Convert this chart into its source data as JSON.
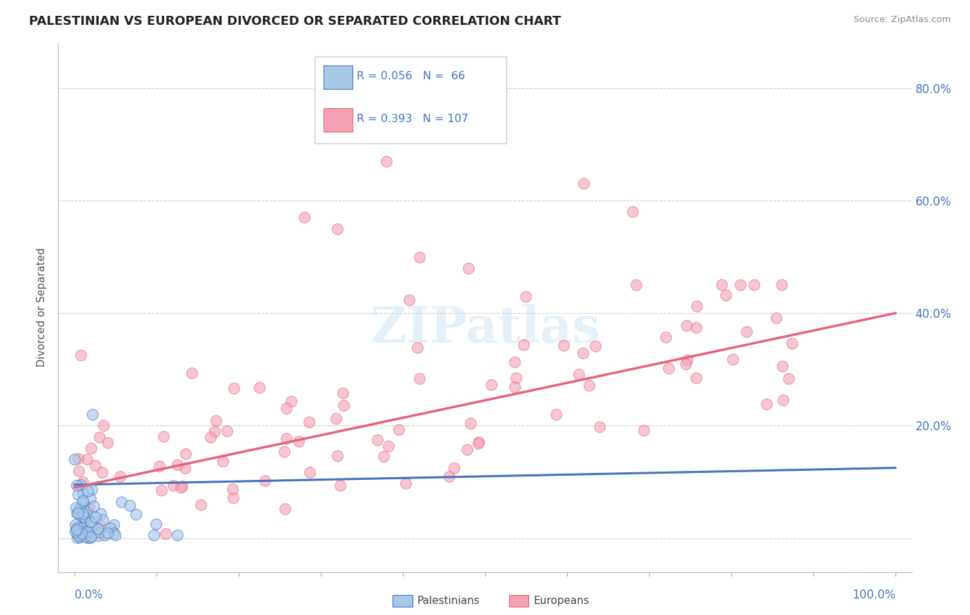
{
  "title": "PALESTINIAN VS EUROPEAN DIVORCED OR SEPARATED CORRELATION CHART",
  "source": "Source: ZipAtlas.com",
  "ylabel": "Divorced or Separated",
  "legend_label1": "Palestinians",
  "legend_label2": "Europeans",
  "r1": 0.056,
  "n1": 66,
  "r2": 0.393,
  "n2": 107,
  "color_blue": "#A8C8E8",
  "color_pink": "#F4A0B5",
  "line_blue": "#4472C4",
  "line_pink": "#E8607A",
  "background": "#FFFFFF",
  "xlim": [
    0.0,
    1.0
  ],
  "ylim": [
    -0.06,
    0.88
  ],
  "ytick_vals": [
    0.0,
    0.2,
    0.4,
    0.6,
    0.8
  ],
  "ytick_labels_right": [
    "",
    "20.0%",
    "40.0%",
    "60.0%",
    "80.0%"
  ]
}
